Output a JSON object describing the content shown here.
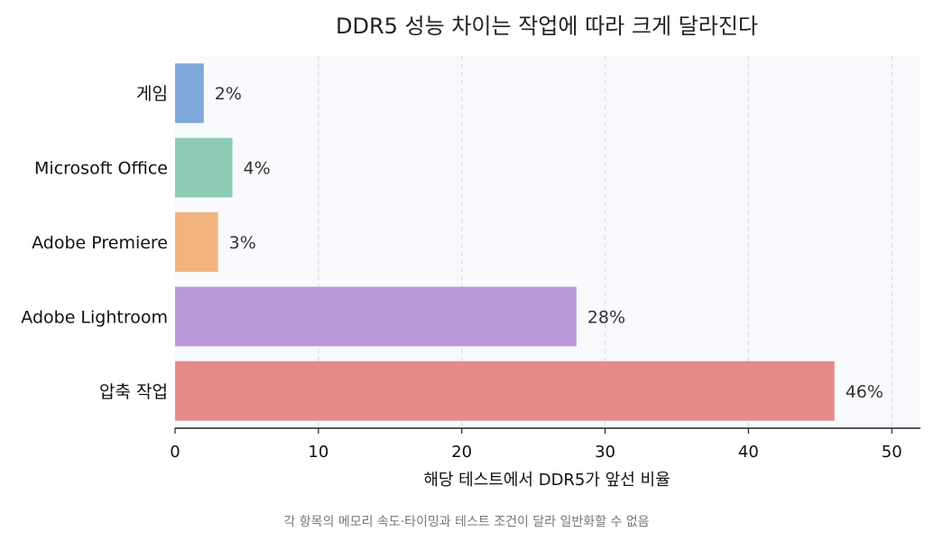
{
  "chart_data": {
    "type": "bar",
    "orientation": "horizontal",
    "title": "DDR5 성능 차이는 작업에 따라 크게 달라진다",
    "xlabel": "해당 테스트에서 DDR5가 앞선 비율",
    "ylabel": "",
    "xlim": [
      0,
      52
    ],
    "xticks": [
      0,
      10,
      20,
      30,
      40,
      50
    ],
    "grid": "vertical-dashed",
    "categories": [
      "게임",
      "Microsoft Office",
      "Adobe Premiere",
      "Adobe Lightroom",
      "압축 작업"
    ],
    "values": [
      2,
      4,
      3,
      28,
      46
    ],
    "value_labels": [
      "2%",
      "4%",
      "3%",
      "28%",
      "46%"
    ],
    "colors": [
      "#7fa7da",
      "#8ecab4",
      "#f2b47f",
      "#b899da",
      "#e58c8a"
    ],
    "plot_background": "#f8fafd"
  },
  "footnote": "각 항목의 메모리 속도·타이밍과 테스트 조건이 달라 일반화할 수 없음"
}
